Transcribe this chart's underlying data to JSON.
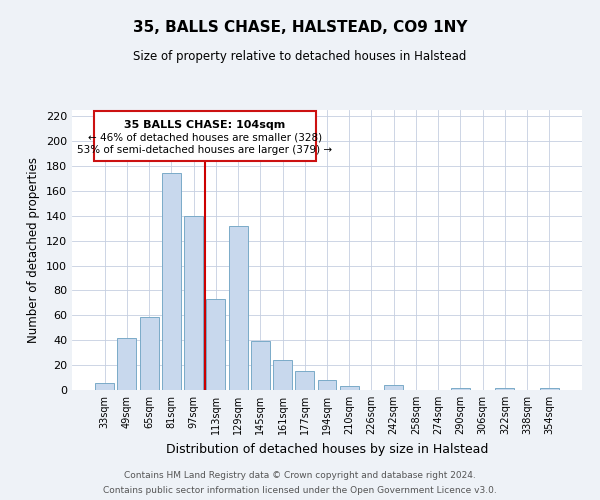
{
  "title": "35, BALLS CHASE, HALSTEAD, CO9 1NY",
  "subtitle": "Size of property relative to detached houses in Halstead",
  "xlabel": "Distribution of detached houses by size in Halstead",
  "ylabel": "Number of detached properties",
  "bar_color": "#c8d8ed",
  "bar_edge_color": "#7aaac8",
  "categories": [
    "33sqm",
    "49sqm",
    "65sqm",
    "81sqm",
    "97sqm",
    "113sqm",
    "129sqm",
    "145sqm",
    "161sqm",
    "177sqm",
    "194sqm",
    "210sqm",
    "226sqm",
    "242sqm",
    "258sqm",
    "274sqm",
    "290sqm",
    "306sqm",
    "322sqm",
    "338sqm",
    "354sqm"
  ],
  "values": [
    6,
    42,
    59,
    174,
    140,
    73,
    132,
    39,
    24,
    15,
    8,
    3,
    0,
    4,
    0,
    0,
    2,
    0,
    2,
    0,
    2
  ],
  "ylim": [
    0,
    225
  ],
  "yticks": [
    0,
    20,
    40,
    60,
    80,
    100,
    120,
    140,
    160,
    180,
    200,
    220
  ],
  "vline_x": 4.5,
  "vline_color": "#cc0000",
  "annotation_title": "35 BALLS CHASE: 104sqm",
  "annotation_line1": "← 46% of detached houses are smaller (328)",
  "annotation_line2": "53% of semi-detached houses are larger (379) →",
  "footer_line1": "Contains HM Land Registry data © Crown copyright and database right 2024.",
  "footer_line2": "Contains public sector information licensed under the Open Government Licence v3.0.",
  "background_color": "#eef2f7",
  "plot_bg_color": "#ffffff",
  "grid_color": "#c5cfe0"
}
